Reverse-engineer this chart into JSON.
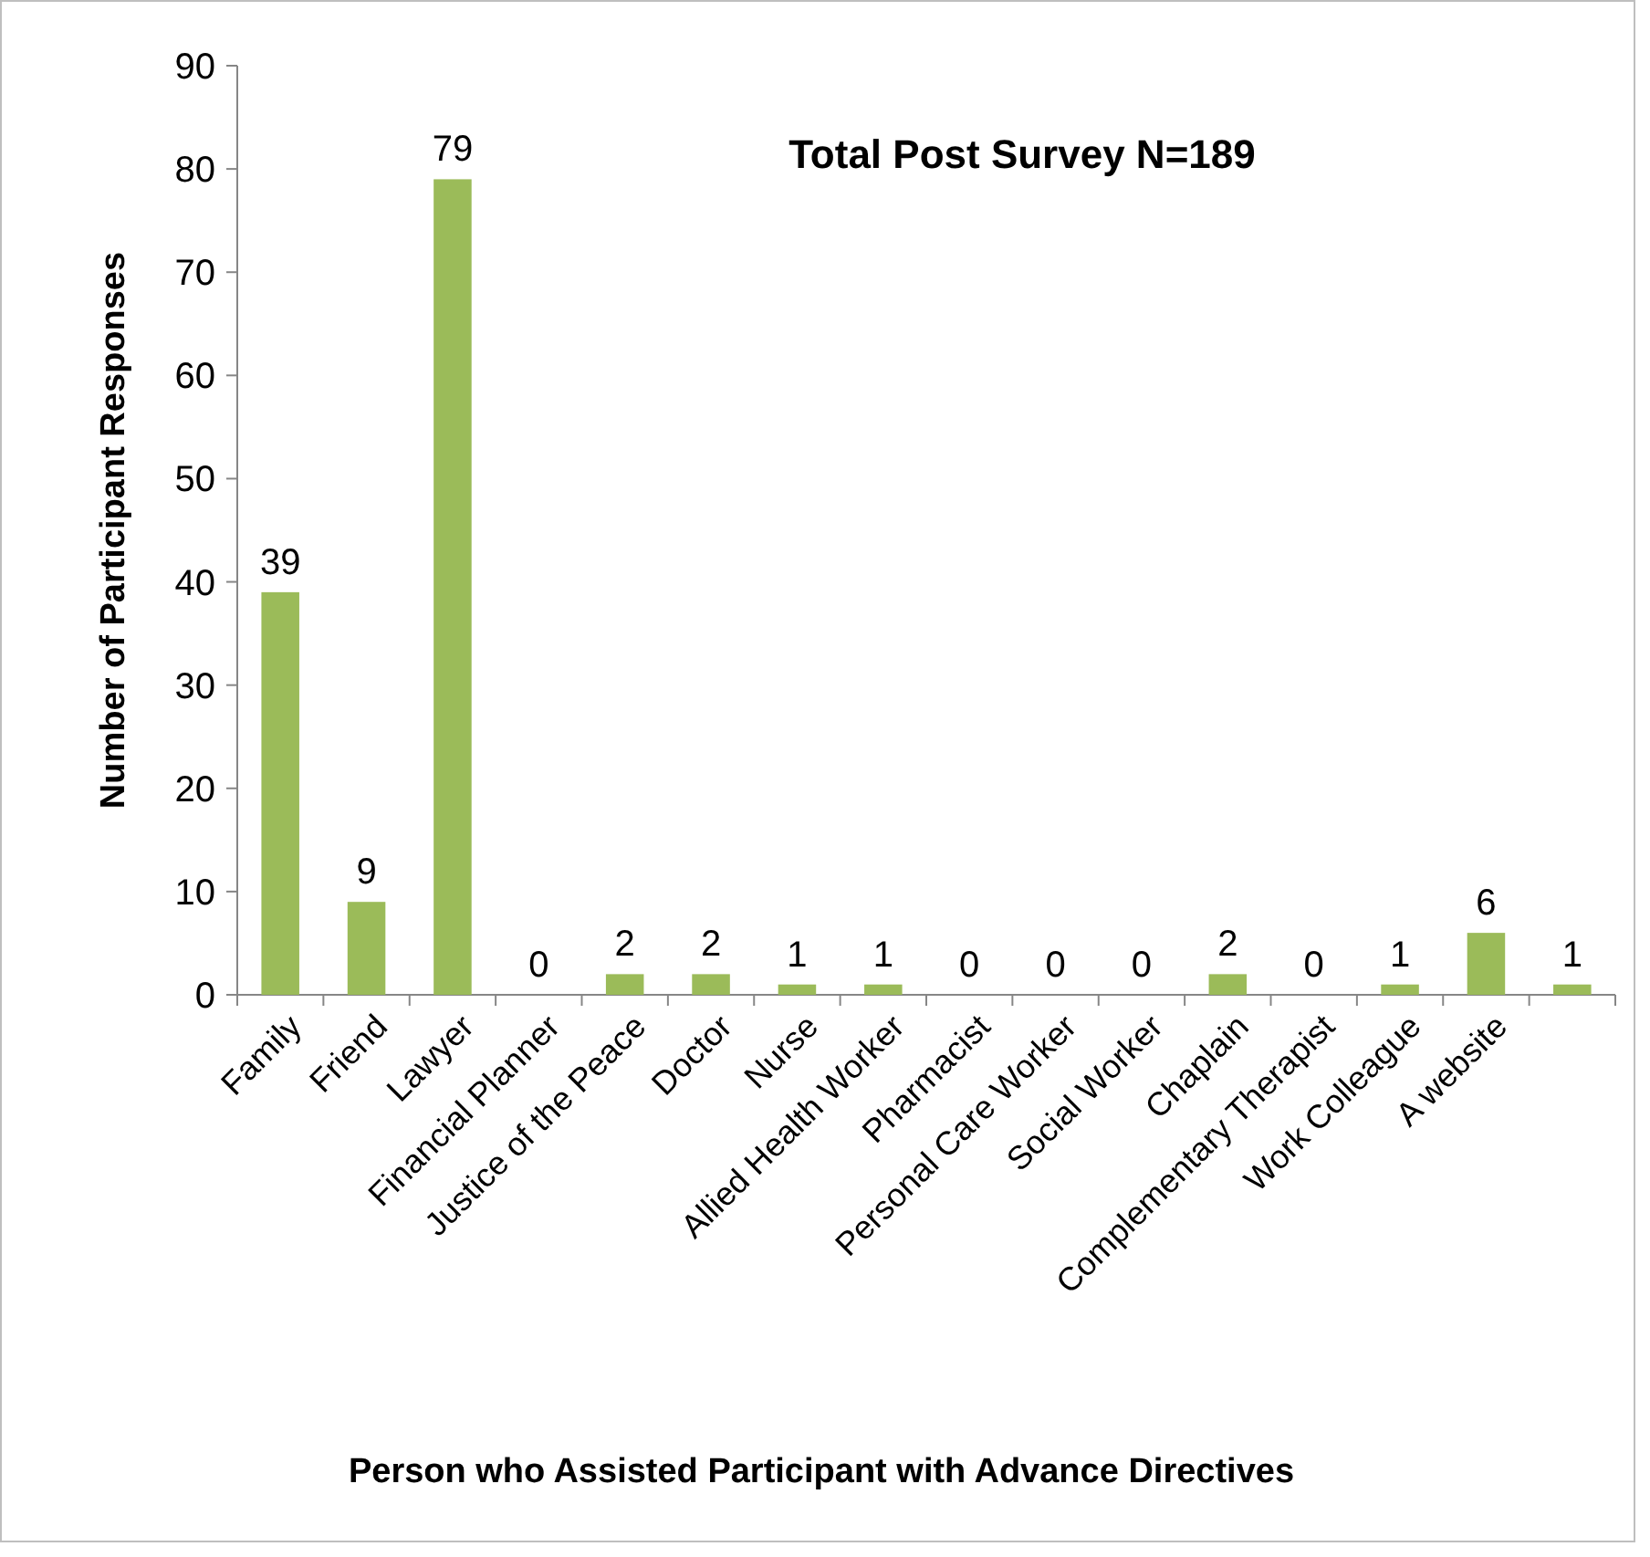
{
  "chart_data": {
    "type": "bar",
    "title": "Total Post Survey N=189",
    "xlabel": "Person who Assisted Participant with Advance Directives",
    "ylabel": "Number of Participant Responses",
    "categories": [
      "Family",
      "Friend",
      "Lawyer",
      "Financial Planner",
      "Justice of the Peace",
      "Doctor",
      "Nurse",
      "Allied Health Worker",
      "Pharmacist",
      "Personal Care Worker",
      "Social Worker",
      "Chaplain",
      "Complementary Therapist",
      "Work Colleague",
      "A website",
      null
    ],
    "values": [
      39,
      9,
      79,
      0,
      2,
      2,
      1,
      1,
      0,
      0,
      0,
      2,
      0,
      1,
      6,
      1
    ],
    "color": "#9bbb59",
    "ylim": [
      0,
      90
    ],
    "yticks": [
      0,
      10,
      20,
      30,
      40,
      50,
      60,
      70,
      80,
      90
    ],
    "data_labels": true,
    "grid": false
  }
}
